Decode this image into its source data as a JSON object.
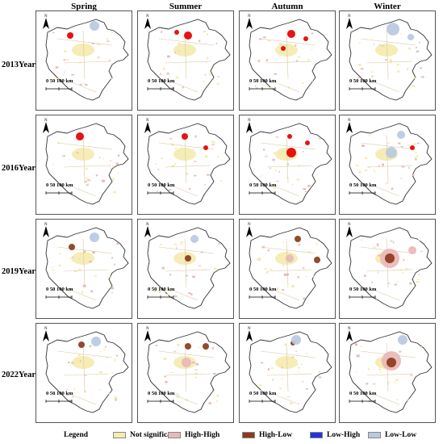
{
  "seasons": [
    "Spring",
    "Summer",
    "Autumn",
    "Winter"
  ],
  "years": [
    "2013Year",
    "2016Year",
    "2019Year",
    "2022Year"
  ],
  "map": {
    "north_label": "N",
    "scale_label": "0   50 100  km"
  },
  "legend": {
    "title": "Legend",
    "items": [
      {
        "label": "Not significant",
        "color": "#f4ebad"
      },
      {
        "label": "High-High",
        "color": "#e8b9b9"
      },
      {
        "label": "High-Low",
        "color": "#8b3a1e"
      },
      {
        "label": "Low-High",
        "color": "#2233dd"
      },
      {
        "label": "Low-Low",
        "color": "#b9c9e2"
      }
    ]
  },
  "panels_hotspots": {
    "2013Year": [
      "High-Low (red) north",
      "High-Low (red) north",
      "High-Low (red) north & center",
      "Low-Low north"
    ],
    "2016Year": [
      "High-Low (red) north",
      "High-Low (red) north",
      "High-Low (red) north & center",
      "Low-Low north"
    ],
    "2019Year": [
      "High-Low north",
      "High-Low center",
      "High-Low north & east",
      "High-High center"
    ],
    "2022Year": [
      "High-Low north",
      "High-Low north & center",
      "High-Low north",
      "High-High center"
    ]
  }
}
